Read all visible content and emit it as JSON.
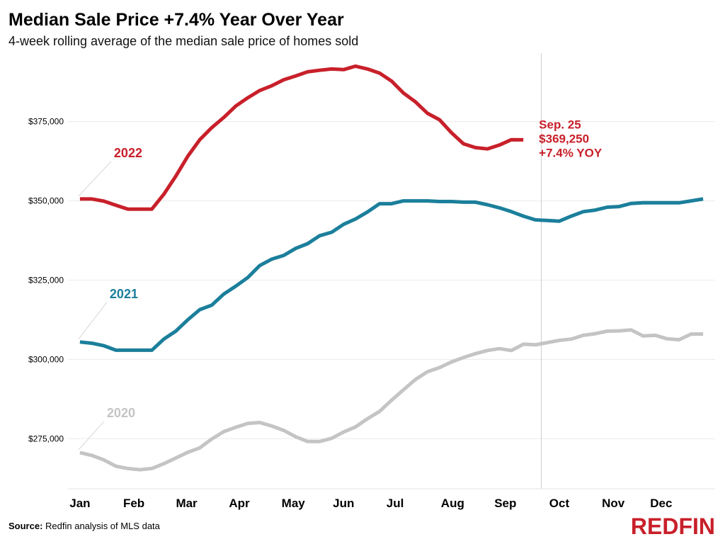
{
  "header": {
    "title": "Median Sale Price +7.4% Year Over Year",
    "subtitle": "4-week rolling average of the median sale price of homes sold"
  },
  "footer": {
    "source_label": "Source:",
    "source_text": "Redfin analysis of MLS data",
    "logo": "REDFIN"
  },
  "colors": {
    "c2022": "#c8202a",
    "c2021": "#1b7f9b",
    "c2020": "#c4c4c4",
    "grid": "#ececec",
    "refline": "#cccccc"
  },
  "chart_data": {
    "type": "line",
    "title": "Median Sale Price +7.4% Year Over Year",
    "subtitle": "4-week rolling average of the median sale price of homes sold",
    "xlabel": "",
    "ylabel": "",
    "x_unit": "week of year",
    "x_ticks": [
      {
        "x": 1,
        "label": "Jan"
      },
      {
        "x": 5.5,
        "label": "Feb"
      },
      {
        "x": 9.9,
        "label": "Mar"
      },
      {
        "x": 14.3,
        "label": "Apr"
      },
      {
        "x": 18.8,
        "label": "May"
      },
      {
        "x": 23,
        "label": "Jun"
      },
      {
        "x": 27.3,
        "label": "Jul"
      },
      {
        "x": 32.1,
        "label": "Aug"
      },
      {
        "x": 36.5,
        "label": "Sep"
      },
      {
        "x": 41,
        "label": "Oct"
      },
      {
        "x": 45.5,
        "label": "Nov"
      },
      {
        "x": 49.5,
        "label": "Dec"
      }
    ],
    "y_ticks": [
      {
        "y": 275000,
        "label": "$275,000"
      },
      {
        "y": 300000,
        "label": "$300,000"
      },
      {
        "y": 325000,
        "label": "$325,000"
      },
      {
        "y": 350000,
        "label": "$350,000"
      },
      {
        "y": 375000,
        "label": "$375,000"
      }
    ],
    "xlim": [
      0,
      54
    ],
    "ylim": [
      259200,
      396600
    ],
    "grid": true,
    "series": [
      {
        "name": "2022",
        "color": "#c8202a",
        "x": [
          1,
          2,
          3,
          4,
          5,
          6,
          7,
          8,
          9,
          10,
          11,
          12,
          13,
          14,
          15,
          16,
          17,
          18,
          19,
          20,
          21,
          22,
          23,
          24,
          25,
          26,
          27,
          28,
          29,
          30,
          31,
          32,
          33,
          34,
          35,
          36,
          37,
          38
        ],
        "values": [
          350600,
          350600,
          349900,
          348600,
          347400,
          347400,
          347400,
          352100,
          357800,
          364100,
          369300,
          373100,
          376300,
          379900,
          382500,
          384800,
          386300,
          388200,
          389400,
          390700,
          391200,
          391600,
          391400,
          392500,
          391600,
          390300,
          387800,
          384000,
          381200,
          377600,
          375600,
          371500,
          368000,
          366800,
          366400,
          367600,
          369300,
          369250
        ]
      },
      {
        "name": "2021",
        "color": "#1b7f9b",
        "x": [
          1,
          2,
          3,
          4,
          5,
          6,
          7,
          8,
          9,
          10,
          11,
          12,
          13,
          14,
          15,
          16,
          17,
          18,
          19,
          20,
          21,
          22,
          23,
          24,
          25,
          26,
          27,
          28,
          29,
          30,
          31,
          32,
          33,
          34,
          35,
          36,
          37,
          38,
          39,
          40,
          41,
          42,
          43,
          44,
          45,
          46,
          47,
          48,
          49,
          50,
          51,
          52,
          53
        ],
        "values": [
          305500,
          305100,
          304300,
          302900,
          302900,
          302900,
          302900,
          306400,
          308900,
          312500,
          315700,
          317100,
          320600,
          323100,
          325800,
          329600,
          331600,
          332800,
          335000,
          336500,
          339000,
          340100,
          342600,
          344300,
          346500,
          349100,
          349100,
          350000,
          350000,
          350000,
          349800,
          349800,
          349600,
          349600,
          348800,
          347800,
          346600,
          345200,
          344000,
          343800,
          343600,
          345200,
          346600,
          347100,
          348000,
          348200,
          349200,
          349400,
          349400,
          349400,
          349400,
          350000,
          350600
        ]
      },
      {
        "name": "2020",
        "color": "#c4c4c4",
        "x": [
          1,
          2,
          3,
          4,
          5,
          6,
          7,
          8,
          9,
          10,
          11,
          12,
          13,
          14,
          15,
          16,
          17,
          18,
          19,
          20,
          21,
          22,
          23,
          24,
          25,
          26,
          27,
          28,
          29,
          30,
          31,
          32,
          33,
          34,
          35,
          36,
          37,
          38,
          39,
          40,
          41,
          42,
          43,
          44,
          45,
          46,
          47,
          48,
          49,
          50,
          51,
          52,
          53
        ],
        "values": [
          270600,
          269700,
          268300,
          266300,
          265600,
          265200,
          265600,
          267100,
          268900,
          270700,
          272100,
          274900,
          277200,
          278600,
          279800,
          280100,
          279000,
          277600,
          275600,
          274100,
          274100,
          275100,
          277100,
          278700,
          281300,
          283600,
          287100,
          290400,
          293700,
          296100,
          297400,
          299200,
          300600,
          301800,
          302800,
          303400,
          302800,
          304800,
          304600,
          305300,
          306000,
          306400,
          307600,
          308100,
          308900,
          309000,
          309300,
          307400,
          307600,
          306500,
          306200,
          308000,
          308000
        ]
      }
    ],
    "series_labels": [
      {
        "series": "2022",
        "text": "2022"
      },
      {
        "series": "2021",
        "text": "2021"
      },
      {
        "series": "2020",
        "text": "2020"
      }
    ],
    "reference_line": {
      "x": 39.5
    },
    "annotation": {
      "series": "2022",
      "x": 38,
      "lines": [
        "Sep. 25",
        "$369,250",
        "+7.4% YOY"
      ]
    }
  }
}
